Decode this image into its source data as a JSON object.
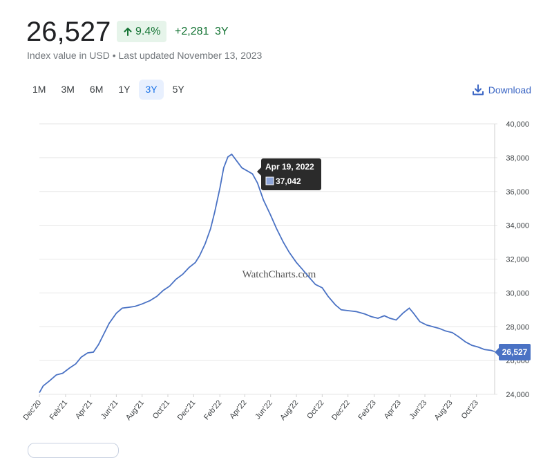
{
  "header": {
    "price": "26,527",
    "change_pct": "9.4%",
    "change_abs": "+2,281",
    "period": "3Y",
    "subtitle": "Index value in USD • Last updated November 13, 2023"
  },
  "ranges": [
    {
      "label": "1M",
      "active": false
    },
    {
      "label": "3M",
      "active": false
    },
    {
      "label": "6M",
      "active": false
    },
    {
      "label": "1Y",
      "active": false
    },
    {
      "label": "3Y",
      "active": true
    },
    {
      "label": "5Y",
      "active": false
    }
  ],
  "download": {
    "label": "Download",
    "icon": "download-icon"
  },
  "colors": {
    "line": "#4a72c4",
    "positive": "#137333",
    "positive_bg": "#e6f4ea",
    "tooltip_bg": "#2b2b2b",
    "last_label_bg": "#4a72c4"
  },
  "chart_data": {
    "type": "line",
    "watermark": "WatchCharts.com",
    "ylim": [
      24000,
      40000
    ],
    "yticks": [
      "24,000",
      "26,000",
      "28,000",
      "30,000",
      "32,000",
      "34,000",
      "36,000",
      "38,000",
      "40,000"
    ],
    "xlim": [
      "2020-12-01",
      "2023-11-13"
    ],
    "xticks": [
      {
        "label": "Dec'20",
        "date": "2020-12-01"
      },
      {
        "label": "Feb'21",
        "date": "2021-02-01"
      },
      {
        "label": "Apr'21",
        "date": "2021-04-01"
      },
      {
        "label": "Jun'21",
        "date": "2021-06-01"
      },
      {
        "label": "Aug'21",
        "date": "2021-08-01"
      },
      {
        "label": "Oct'21",
        "date": "2021-10-01"
      },
      {
        "label": "Dec'21",
        "date": "2021-12-01"
      },
      {
        "label": "Feb'22",
        "date": "2022-02-01"
      },
      {
        "label": "Apr'22",
        "date": "2022-04-01"
      },
      {
        "label": "Jun'22",
        "date": "2022-06-01"
      },
      {
        "label": "Aug'22",
        "date": "2022-08-01"
      },
      {
        "label": "Oct'22",
        "date": "2022-10-01"
      },
      {
        "label": "Dec'22",
        "date": "2022-12-01"
      },
      {
        "label": "Feb'23",
        "date": "2023-02-01"
      },
      {
        "label": "Apr'23",
        "date": "2023-04-01"
      },
      {
        "label": "Jun'23",
        "date": "2023-06-01"
      },
      {
        "label": "Aug'23",
        "date": "2023-08-01"
      },
      {
        "label": "Oct'23",
        "date": "2023-10-01"
      }
    ],
    "series": [
      {
        "points": [
          [
            "2020-11-20",
            24100
          ],
          [
            "2020-12-10",
            24500
          ],
          [
            "2020-12-25",
            24800
          ],
          [
            "2021-01-10",
            25150
          ],
          [
            "2021-01-25",
            25250
          ],
          [
            "2021-02-10",
            25550
          ],
          [
            "2021-02-25",
            25800
          ],
          [
            "2021-03-10",
            26200
          ],
          [
            "2021-03-25",
            26450
          ],
          [
            "2021-04-08",
            26500
          ],
          [
            "2021-04-20",
            26950
          ],
          [
            "2021-05-01",
            27500
          ],
          [
            "2021-05-15",
            28200
          ],
          [
            "2021-06-01",
            28800
          ],
          [
            "2021-06-15",
            29100
          ],
          [
            "2021-07-01",
            29150
          ],
          [
            "2021-07-15",
            29200
          ],
          [
            "2021-08-01",
            29350
          ],
          [
            "2021-08-20",
            29550
          ],
          [
            "2021-09-05",
            29800
          ],
          [
            "2021-09-20",
            30150
          ],
          [
            "2021-10-05",
            30400
          ],
          [
            "2021-10-20",
            30800
          ],
          [
            "2021-11-05",
            31100
          ],
          [
            "2021-11-20",
            31500
          ],
          [
            "2021-12-05",
            31800
          ],
          [
            "2021-12-15",
            32200
          ],
          [
            "2021-12-28",
            32900
          ],
          [
            "2022-01-10",
            33800
          ],
          [
            "2022-01-20",
            34800
          ],
          [
            "2022-02-01",
            36200
          ],
          [
            "2022-02-10",
            37400
          ],
          [
            "2022-02-20",
            38050
          ],
          [
            "2022-03-01",
            38200
          ],
          [
            "2022-03-10",
            37900
          ],
          [
            "2022-03-25",
            37400
          ],
          [
            "2022-04-19",
            37042
          ],
          [
            "2022-05-01",
            36500
          ],
          [
            "2022-05-15",
            35500
          ],
          [
            "2022-06-01",
            34600
          ],
          [
            "2022-06-15",
            33800
          ],
          [
            "2022-07-01",
            33000
          ],
          [
            "2022-07-15",
            32400
          ],
          [
            "2022-08-01",
            31800
          ],
          [
            "2022-08-15",
            31400
          ],
          [
            "2022-09-01",
            30900
          ],
          [
            "2022-09-15",
            30500
          ],
          [
            "2022-10-01",
            30300
          ],
          [
            "2022-10-15",
            29800
          ],
          [
            "2022-11-01",
            29300
          ],
          [
            "2022-11-15",
            29000
          ],
          [
            "2022-12-01",
            28950
          ],
          [
            "2022-12-20",
            28900
          ],
          [
            "2023-01-10",
            28750
          ],
          [
            "2023-01-25",
            28600
          ],
          [
            "2023-02-10",
            28500
          ],
          [
            "2023-02-25",
            28650
          ],
          [
            "2023-03-10",
            28500
          ],
          [
            "2023-03-25",
            28400
          ],
          [
            "2023-04-10",
            28800
          ],
          [
            "2023-04-25",
            29100
          ],
          [
            "2023-05-05",
            28800
          ],
          [
            "2023-05-20",
            28300
          ],
          [
            "2023-06-05",
            28100
          ],
          [
            "2023-06-20",
            28000
          ],
          [
            "2023-07-05",
            27900
          ],
          [
            "2023-07-20",
            27750
          ],
          [
            "2023-08-05",
            27650
          ],
          [
            "2023-08-20",
            27400
          ],
          [
            "2023-09-05",
            27100
          ],
          [
            "2023-09-20",
            26900
          ],
          [
            "2023-10-05",
            26800
          ],
          [
            "2023-10-20",
            26650
          ],
          [
            "2023-11-05",
            26600
          ],
          [
            "2023-11-13",
            26527
          ]
        ]
      }
    ],
    "tooltip": {
      "date": "Apr 19, 2022",
      "value": "37,042"
    },
    "last_value_label": "26,527"
  }
}
